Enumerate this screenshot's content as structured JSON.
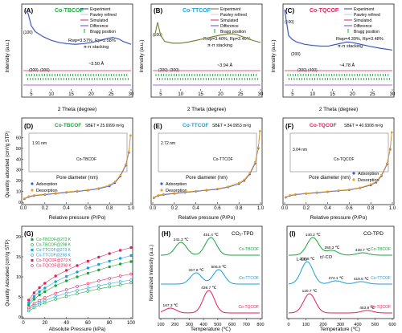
{
  "figure": {
    "panels": {
      "A": {
        "letter": "(A)",
        "title": "Co-TBCOF",
        "xlabel": "2 Theta (degree)",
        "ylabel": "Intensity (a.u.)",
        "legend": [
          "Experiment",
          "Pawley refined",
          "Simulated",
          "Difference",
          "Bragg position"
        ],
        "fit": "Rwp=3.57%, Rp=2.58%",
        "stack_label": "π-π stacking",
        "d_label": "~3.50 Å",
        "peak_labels": [
          "(100)",
          "(200)",
          "(300)"
        ],
        "color": "#17a63a"
      },
      "B": {
        "letter": "(B)",
        "title": "Co-TTCOF",
        "xlabel": "2 Theta (degree)",
        "ylabel": "Intensity (a.u.)",
        "legend": [
          "Experiment",
          "Pawley refined",
          "Simulated",
          "Difference",
          "Bragg position"
        ],
        "fit": "Rwp=3.40%, Rp=2.40%",
        "stack_label": "π-π stacking",
        "d_label": "~3.94 Å",
        "peak_labels": [
          "(100)",
          "(200)",
          "(300)"
        ],
        "color": "#1aa0d8"
      },
      "C": {
        "letter": "(C)",
        "title": "Co-TQCOF",
        "xlabel": "2 Theta (degree)",
        "ylabel": "Intensity (a.u.)",
        "legend": [
          "Experiment",
          "Pawley refined",
          "Simulated",
          "Difference",
          "Bragg position"
        ],
        "fit": "Rwp=4.39%, Rp=3.48%",
        "stack_label": "π-π stacking",
        "d_label": "~4.78 Å",
        "peak_labels": [
          "(100)",
          "(200)",
          "(300)",
          "(400)"
        ],
        "color": "#e0205a"
      },
      "D": {
        "letter": "(D)",
        "title": "Co-TBCOF",
        "bet": "SBET = 25.6999 m²/g",
        "xlabel": "Relative pressure (P/Po)",
        "ylabel": "Quantity adsorbed (cm³/g STP)",
        "inset_xlabel": "Pore diameter (nm)",
        "inset_label": "Co-TBCOF",
        "pore_label": "1.91 nm",
        "legend": [
          "Adsorption",
          "Desorption"
        ]
      },
      "E": {
        "letter": "(E)",
        "title": "Co-TTCOF",
        "bet": "SBET = 34.0953 m²/g",
        "xlabel": "Relative pressure (P/Po)",
        "inset_xlabel": "Pore diameter (nm)",
        "inset_label": "Co-TTCOF",
        "pore_label": "2.72 nm",
        "legend": [
          "Adsorption",
          "Desorption"
        ]
      },
      "F": {
        "letter": "(F)",
        "title": "Co-TQCOF",
        "bet": "SBET = 40.9308 m²/g",
        "xlabel": "Relative pressure (P/Po)",
        "inset_xlabel": "Pore diameter (nm)",
        "inset_label": "Co-TQCOF",
        "pore_label": "3.04 nm",
        "legend": [
          "Adsorption",
          "Desorption"
        ]
      },
      "G": {
        "letter": "(G)",
        "xlabel": "Absolute Pressure (kPa)",
        "ylabel": "Quantity Adsorbed (cm³/g STP)"
      },
      "H": {
        "letter": "(H)",
        "title": "CO₂-TPD",
        "xlabel": "Temperature (℃)",
        "ylabel": "Normalized Intensity (a.u.)",
        "peak_labels": [
          "241.3 ℃",
          "451.4 ℃",
          "347.8 ℃",
          "506.5 ℃",
          "167.3 ℃",
          "436.7 ℃"
        ]
      },
      "I": {
        "letter": "(I)",
        "title": "CO-TPD",
        "xlabel": "Temperature (℃)",
        "annotations": [
          "L-CO",
          "η²-CO"
        ],
        "peak_labels": [
          "140.2 ℃",
          "250.3 ℃",
          "428.7 ℃",
          "106.8 ℃",
          "274.1 ℃",
          "419.5 ℃",
          "120.7 ℃",
          "453.9 ℃"
        ]
      }
    }
  },
  "chart_data": [
    {
      "panel": "A",
      "type": "line",
      "title": "Co-TBCOF",
      "xlabel": "2 Theta (degree)",
      "ylabel": "Intensity (a.u.)",
      "xlim": [
        3,
        30
      ],
      "x": [
        3.5,
        4.2,
        5.0,
        6.0,
        8,
        10,
        12,
        14,
        16,
        18,
        20,
        22,
        24,
        25.4,
        27,
        28,
        30
      ],
      "series": [
        {
          "name": "Experiment",
          "values": [
            0.98,
            0.93,
            0.72,
            0.62,
            0.53,
            0.47,
            0.43,
            0.41,
            0.4,
            0.41,
            0.43,
            0.46,
            0.5,
            0.52,
            0.49,
            0.45,
            0.4
          ]
        }
      ]
    },
    {
      "panel": "B",
      "type": "line",
      "title": "Co-TTCOF",
      "xlabel": "2 Theta (degree)",
      "ylabel": "Intensity (a.u.)",
      "xlim": [
        3,
        30
      ],
      "x": [
        3.5,
        4.2,
        5.0,
        6.0,
        8,
        10,
        12,
        14,
        16,
        18,
        20,
        22,
        23,
        24,
        26,
        28,
        30
      ],
      "series": [
        {
          "name": "Experiment",
          "values": [
            0.55,
            0.78,
            0.55,
            0.45,
            0.42,
            0.42,
            0.44,
            0.47,
            0.5,
            0.53,
            0.56,
            0.58,
            0.58,
            0.57,
            0.52,
            0.47,
            0.43
          ]
        }
      ]
    },
    {
      "panel": "C",
      "type": "line",
      "title": "Co-TQCOF",
      "xlabel": "2 Theta (degree)",
      "ylabel": "Intensity (a.u.)",
      "xlim": [
        3,
        30
      ],
      "x": [
        3.0,
        4.0,
        5.0,
        6.0,
        7,
        8,
        10,
        12,
        14,
        16,
        18,
        18.5,
        20,
        22,
        24,
        27,
        30
      ],
      "series": [
        {
          "name": "Experiment",
          "values": [
            1.0,
            0.55,
            0.48,
            0.44,
            0.42,
            0.4,
            0.38,
            0.37,
            0.37,
            0.4,
            0.43,
            0.44,
            0.43,
            0.4,
            0.37,
            0.33,
            0.3
          ]
        }
      ]
    },
    {
      "panel": "D",
      "type": "line",
      "title": "Co-TBCOF",
      "xlabel": "Relative pressure (P/Po)",
      "ylabel": "Quantity adsorbed (cm³/g STP)",
      "xlim": [
        0,
        1
      ],
      "x": [
        0.01,
        0.05,
        0.1,
        0.2,
        0.3,
        0.4,
        0.5,
        0.6,
        0.7,
        0.8,
        0.85,
        0.9,
        0.95,
        0.98,
        0.995
      ],
      "series": [
        {
          "name": "Adsorption",
          "values": [
            3,
            5,
            6,
            7,
            8,
            9,
            10,
            11,
            12.5,
            15,
            18,
            24,
            34,
            46,
            62
          ]
        },
        {
          "name": "Desorption",
          "values": [
            3.5,
            5.5,
            6.5,
            7.5,
            8.5,
            9.5,
            10.5,
            11.5,
            13,
            16,
            19,
            25,
            35,
            47,
            62
          ]
        }
      ]
    },
    {
      "panel": "E",
      "type": "line",
      "title": "Co-TTCOF",
      "xlabel": "Relative pressure (P/Po)",
      "xlim": [
        0,
        1
      ],
      "x": [
        0.01,
        0.05,
        0.1,
        0.2,
        0.3,
        0.4,
        0.5,
        0.6,
        0.7,
        0.8,
        0.85,
        0.9,
        0.95,
        0.98,
        0.995
      ],
      "series": [
        {
          "name": "Adsorption",
          "values": [
            4,
            6,
            7,
            8,
            9,
            10,
            11,
            12,
            14,
            17,
            20,
            26,
            36,
            50,
            66
          ]
        },
        {
          "name": "Desorption",
          "values": [
            4.5,
            6.5,
            7.5,
            8.5,
            9.5,
            10.5,
            11.5,
            12.5,
            14.5,
            18,
            21,
            27,
            37,
            51,
            66
          ]
        }
      ]
    },
    {
      "panel": "F",
      "type": "line",
      "title": "Co-TQCOF",
      "xlabel": "Relative pressure (P/Po)",
      "xlim": [
        0,
        1
      ],
      "x": [
        0.01,
        0.05,
        0.1,
        0.2,
        0.3,
        0.4,
        0.5,
        0.6,
        0.7,
        0.8,
        0.85,
        0.9,
        0.95,
        0.98,
        0.995
      ],
      "series": [
        {
          "name": "Adsorption",
          "values": [
            5,
            7,
            8,
            9,
            10,
            11,
            12,
            13,
            15,
            18,
            21,
            28,
            40,
            56,
            74
          ]
        },
        {
          "name": "Desorption",
          "values": [
            5.5,
            7.5,
            8.5,
            9.5,
            10.5,
            11.5,
            12.5,
            13.5,
            15.5,
            19,
            22,
            29,
            41,
            57,
            74
          ]
        }
      ]
    },
    {
      "panel": "G",
      "type": "scatter",
      "xlabel": "Absolute Pressure (kPa)",
      "ylabel": "Quantity Adsorbed (cm³/g STP)",
      "xlim": [
        0,
        100
      ],
      "ylim": [
        0,
        20
      ],
      "x": [
        5,
        10,
        15,
        20,
        30,
        40,
        50,
        60,
        70,
        80,
        90,
        100
      ],
      "series": [
        {
          "name": "Co-TBCOF@273 K",
          "color": "#17a63a",
          "values": [
            3.0,
            4.4,
            5.5,
            6.3,
            7.8,
            9.0,
            10.0,
            10.9,
            11.7,
            12.5,
            13.2,
            13.8
          ]
        },
        {
          "name": "Co-TBCOF@298 K",
          "color": "#17a63a",
          "values": [
            1.5,
            2.3,
            3.0,
            3.5,
            4.4,
            5.1,
            5.8,
            6.4,
            7.0,
            7.5,
            8.0,
            8.5
          ]
        },
        {
          "name": "Co-TTCOF@273 K",
          "color": "#1aa0d8",
          "values": [
            3.5,
            5.1,
            6.3,
            7.2,
            8.8,
            10.1,
            11.2,
            12.2,
            13.1,
            13.9,
            14.6,
            15.3
          ]
        },
        {
          "name": "Co-TTCOF@298 K",
          "color": "#1aa0d8",
          "values": [
            1.9,
            2.8,
            3.5,
            4.1,
            5.1,
            5.9,
            6.6,
            7.2,
            7.8,
            8.3,
            8.8,
            9.2
          ]
        },
        {
          "name": "Co-TQCOF@273 K",
          "color": "#e0205a",
          "values": [
            4.2,
            6.0,
            7.3,
            8.4,
            10.2,
            11.6,
            12.8,
            13.9,
            14.9,
            15.8,
            16.6,
            17.3
          ]
        },
        {
          "name": "Co-TQCOF@298 K",
          "color": "#e0205a",
          "values": [
            2.3,
            3.3,
            4.1,
            4.8,
            5.9,
            6.8,
            7.6,
            8.3,
            9.0,
            9.6,
            10.2,
            10.7
          ]
        }
      ]
    },
    {
      "panel": "H",
      "type": "line",
      "title": "CO₂-TPD",
      "xlabel": "Temperature (℃)",
      "ylabel": "Normalized Intensity (a.u.)",
      "xlim": [
        100,
        800
      ],
      "series": [
        {
          "name": "Co-TBCOF",
          "color": "#17a63a",
          "peaks": [
            241.3,
            451.4
          ]
        },
        {
          "name": "Co-TTCOF",
          "color": "#1aa0d8",
          "peaks": [
            347.8,
            506.5
          ]
        },
        {
          "name": "Co-TQCOF",
          "color": "#e0205a",
          "peaks": [
            167.3,
            436.7
          ]
        }
      ]
    },
    {
      "panel": "I",
      "type": "line",
      "title": "CO-TPD",
      "xlabel": "Temperature (℃)",
      "xlim": [
        0,
        600
      ],
      "series": [
        {
          "name": "Co-TBCOF",
          "color": "#17a63a",
          "peaks": [
            140.2,
            250.3,
            428.7
          ]
        },
        {
          "name": "Co-TTCOF",
          "color": "#1aa0d8",
          "peaks": [
            106.8,
            274.1,
            419.5
          ]
        },
        {
          "name": "Co-TQCOF",
          "color": "#e0205a",
          "peaks": [
            120.7,
            453.9
          ]
        }
      ]
    }
  ]
}
